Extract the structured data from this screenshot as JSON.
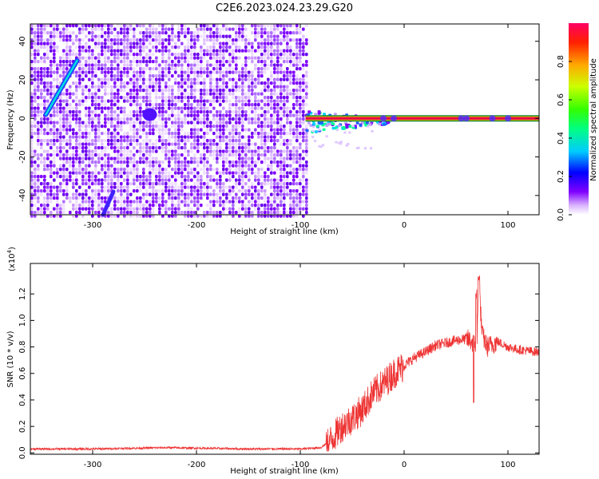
{
  "chart_data": [
    {
      "type": "heatmap",
      "title": "C2E6.2023.024.23.29.G20",
      "xlabel": "Height of straight line (km)",
      "ylabel": "Frequency (Hz)",
      "xlim": [
        -360,
        130
      ],
      "ylim": [
        -50,
        49
      ],
      "xticks": [
        -300,
        -200,
        -100,
        0,
        100
      ],
      "yticks": [
        -40,
        -20,
        0,
        20,
        40
      ],
      "colorbar": {
        "label": "Normalized spectral amplitude",
        "range": [
          0.0,
          1.0
        ],
        "ticks": [
          "0.0",
          "0.2",
          "0.4",
          "0.6",
          "0.8"
        ],
        "colormap": "rainbow"
      },
      "colors": {
        "low": "#e6ccff",
        "mid": "#7a00ff",
        "high": "#e0004a"
      },
      "features": {
        "noise_region_x": [
          -360,
          -95
        ],
        "carrier_start_x": -95,
        "carrier_frequency": 0,
        "chirp_line": {
          "x": [
            -345,
            -315
          ],
          "y": [
            2,
            30
          ]
        },
        "chirp_line_lower": {
          "x": [
            -290,
            -280
          ],
          "y": [
            -50,
            -38
          ]
        }
      }
    },
    {
      "type": "line",
      "xlabel": "Height of straight line (km)",
      "ylabel": "SNR (10 * v/v)",
      "scale_label": "(x10",
      "scale_exp": "4",
      "scale_close": ")",
      "xlim": [
        -360,
        130
      ],
      "ylim": [
        -0.01,
        1.43
      ],
      "xticks": [
        -300,
        -200,
        -100,
        0,
        100
      ],
      "yticks": [
        "0.0",
        "0.2",
        "0.4",
        "0.6",
        "0.8",
        "1.0",
        "1.2"
      ],
      "color": "#ee3333",
      "series": [
        {
          "x": [
            -360,
            -300,
            -230,
            -150,
            -100,
            -80,
            -70,
            -60,
            -50,
            -40,
            -30,
            -20,
            -10,
            0,
            10,
            20,
            30,
            40,
            50,
            60,
            65,
            70,
            72,
            75,
            80,
            90,
            100,
            110,
            120,
            130
          ],
          "y": [
            0.03,
            0.03,
            0.04,
            0.03,
            0.03,
            0.04,
            0.1,
            0.2,
            0.26,
            0.33,
            0.45,
            0.52,
            0.6,
            0.66,
            0.72,
            0.76,
            0.81,
            0.83,
            0.85,
            0.86,
            0.84,
            0.8,
            1.3,
            0.9,
            0.8,
            0.84,
            0.8,
            0.78,
            0.77,
            0.76
          ]
        }
      ]
    }
  ]
}
